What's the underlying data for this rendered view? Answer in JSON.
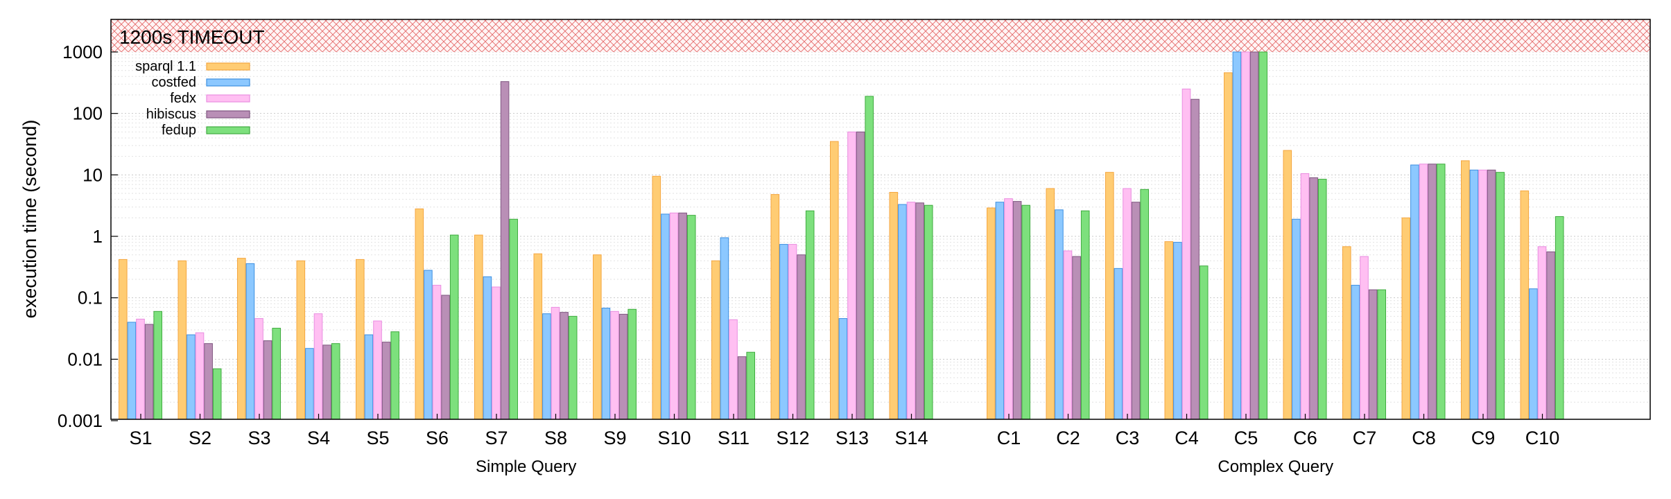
{
  "chart_data": {
    "type": "bar",
    "ylabel": "execution time (second)",
    "yscale": "log",
    "ylim": [
      0.001,
      4000
    ],
    "yticks": [
      "0.001",
      "0.01",
      "0.1",
      "1",
      "10",
      "100",
      "1000"
    ],
    "grid": "horizontal minor",
    "legend_position": "top-left",
    "timeout_label": "1200s TIMEOUT",
    "timeout_value": 1200,
    "groups": [
      {
        "label": "Simple Query",
        "categories": [
          "S1",
          "S2",
          "S3",
          "S4",
          "S5",
          "S6",
          "S7",
          "S8",
          "S9",
          "S10",
          "S11",
          "S12",
          "S13",
          "S14"
        ]
      },
      {
        "label": "Complex Query",
        "categories": [
          "C1",
          "C2",
          "C3",
          "C4",
          "C5",
          "C6",
          "C7",
          "C8",
          "C9",
          "C10"
        ]
      }
    ],
    "series": [
      {
        "name": "sparql 1.1",
        "color": "#ffcc73",
        "stroke": "#f4a640",
        "values": [
          0.42,
          0.4,
          0.44,
          0.4,
          0.42,
          2.8,
          1.05,
          0.52,
          0.5,
          9.5,
          0.4,
          4.8,
          35,
          5.2,
          2.9,
          6.0,
          11,
          0.82,
          460,
          25,
          0.68,
          2.0,
          17,
          5.5
        ]
      },
      {
        "name": "costfed",
        "color": "#8cc8ff",
        "stroke": "#3d8fe0",
        "values": [
          0.04,
          0.025,
          0.36,
          0.015,
          0.025,
          0.28,
          0.22,
          0.055,
          0.068,
          2.3,
          0.95,
          0.74,
          0.046,
          3.3,
          3.6,
          2.7,
          0.3,
          0.8,
          1200,
          1.9,
          0.16,
          14.5,
          12,
          0.14
        ]
      },
      {
        "name": "fedx",
        "color": "#ffbff2",
        "stroke": "#e98ee0",
        "values": [
          0.045,
          0.027,
          0.046,
          0.055,
          0.042,
          0.16,
          0.15,
          0.07,
          0.06,
          2.4,
          0.044,
          0.74,
          50,
          3.6,
          4.1,
          0.58,
          6.0,
          250,
          1200,
          10.5,
          0.47,
          15,
          12,
          0.68
        ]
      },
      {
        "name": "hibiscus",
        "color": "#b98fb6",
        "stroke": "#7f5680",
        "values": [
          0.037,
          0.018,
          0.02,
          0.017,
          0.019,
          0.11,
          330,
          0.058,
          0.054,
          2.4,
          0.011,
          0.5,
          50,
          3.5,
          3.7,
          0.47,
          3.6,
          170,
          1200,
          9.0,
          0.135,
          15,
          12,
          0.56
        ]
      },
      {
        "name": "fedup",
        "color": "#7de07d",
        "stroke": "#3fab3f",
        "values": [
          0.06,
          0.007,
          0.032,
          0.018,
          0.028,
          1.05,
          1.9,
          0.05,
          0.065,
          2.2,
          0.013,
          2.6,
          190,
          3.2,
          3.2,
          2.6,
          5.8,
          0.33,
          1200,
          8.5,
          0.135,
          15,
          11,
          2.1
        ]
      }
    ]
  }
}
